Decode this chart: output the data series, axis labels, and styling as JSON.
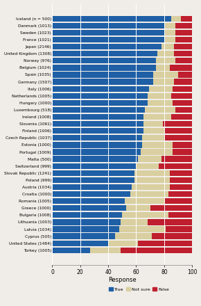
{
  "countries": [
    "Iceland (n = 500)",
    "Denmark (1013)",
    "Sweden (1023)",
    "France (1021)",
    "Japan (2146)",
    "United Kingdom (1308)",
    "Norway (976)",
    "Belgium (1024)",
    "Spain (1035)",
    "Germany (1507)",
    "Italy (1006)",
    "Netherlands (1005)",
    "Hungary (1000)",
    "Luxembourg (518)",
    "Ireland (1008)",
    "Slovenia (1061)",
    "Finland (1006)",
    "Czech Republic (1037)",
    "Estonia (1000)",
    "Portugal (1009)",
    "Malta (500)",
    "Switzerland (999)",
    "Slovak Republic (1241)",
    "Poland (999)",
    "Austria (1034)",
    "Croatia (1000)",
    "Romania (1005)",
    "Greece (1000)",
    "Bulgaria (1008)",
    "Lithuania (1003)",
    "Latvia (1034)",
    "Cyprus (505)",
    "United States (1484)",
    "Turkey (1005)"
  ],
  "true": [
    85,
    80,
    80,
    80,
    78,
    75,
    74,
    74,
    72,
    72,
    69,
    68,
    68,
    66,
    65,
    65,
    65,
    64,
    64,
    63,
    61,
    60,
    59,
    59,
    57,
    56,
    52,
    53,
    50,
    49,
    48,
    45,
    40,
    27
  ],
  "not_sure": [
    7,
    8,
    8,
    8,
    9,
    12,
    14,
    10,
    18,
    15,
    17,
    17,
    18,
    22,
    20,
    14,
    15,
    16,
    22,
    23,
    17,
    16,
    25,
    25,
    27,
    27,
    28,
    17,
    33,
    19,
    33,
    26,
    21,
    22
  ],
  "false": [
    8,
    12,
    12,
    12,
    13,
    13,
    12,
    16,
    10,
    13,
    14,
    15,
    14,
    12,
    15,
    21,
    20,
    20,
    14,
    14,
    22,
    24,
    16,
    16,
    16,
    17,
    20,
    30,
    17,
    32,
    19,
    29,
    39,
    51
  ],
  "true_color": "#1f5fa6",
  "not_sure_color": "#d9cfa0",
  "false_color": "#bf1e2e",
  "background_color": "#f0ede8",
  "xlabel": "Response",
  "xlim": [
    0,
    100
  ],
  "xticks": [
    0,
    20,
    40,
    60,
    80,
    100
  ]
}
